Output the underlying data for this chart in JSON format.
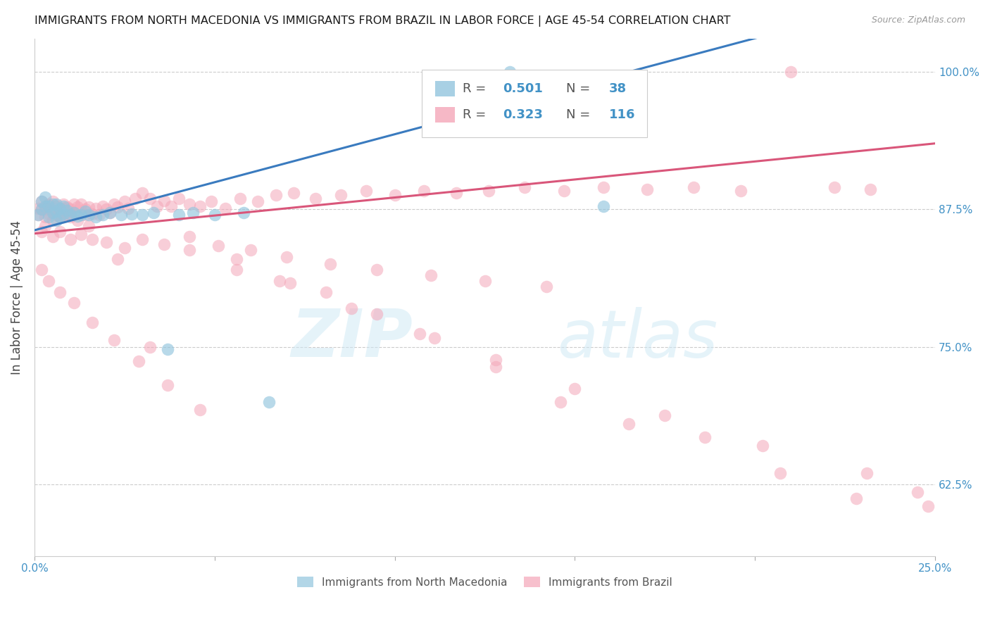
{
  "title": "IMMIGRANTS FROM NORTH MACEDONIA VS IMMIGRANTS FROM BRAZIL IN LABOR FORCE | AGE 45-54 CORRELATION CHART",
  "source": "Source: ZipAtlas.com",
  "ylabel": "In Labor Force | Age 45-54",
  "legend_blue_r": "0.501",
  "legend_blue_n": "38",
  "legend_pink_r": "0.323",
  "legend_pink_n": "116",
  "legend_label_blue": "Immigrants from North Macedonia",
  "legend_label_pink": "Immigrants from Brazil",
  "blue_color": "#92c5de",
  "pink_color": "#f4a6b8",
  "blue_line_color": "#3a7bbf",
  "pink_line_color": "#d9567a",
  "accent_color": "#4292c6",
  "xmin": 0.0,
  "xmax": 0.25,
  "ymin": 0.56,
  "ymax": 1.03,
  "grid_color": "#cccccc",
  "blue_x": [
    0.001,
    0.002,
    0.002,
    0.003,
    0.003,
    0.004,
    0.004,
    0.005,
    0.005,
    0.006,
    0.006,
    0.006,
    0.007,
    0.007,
    0.008,
    0.008,
    0.009,
    0.01,
    0.011,
    0.012,
    0.013,
    0.014,
    0.015,
    0.017,
    0.019,
    0.021,
    0.024,
    0.027,
    0.03,
    0.033,
    0.037,
    0.04,
    0.044,
    0.05,
    0.058,
    0.065,
    0.132,
    0.158
  ],
  "blue_y": [
    0.87,
    0.875,
    0.882,
    0.878,
    0.886,
    0.868,
    0.878,
    0.872,
    0.88,
    0.865,
    0.873,
    0.88,
    0.868,
    0.876,
    0.871,
    0.878,
    0.874,
    0.87,
    0.872,
    0.869,
    0.87,
    0.873,
    0.87,
    0.868,
    0.87,
    0.872,
    0.87,
    0.871,
    0.87,
    0.872,
    0.748,
    0.87,
    0.872,
    0.87,
    0.872,
    0.7,
    1.0,
    0.878
  ],
  "pink_x": [
    0.001,
    0.001,
    0.002,
    0.002,
    0.003,
    0.003,
    0.004,
    0.004,
    0.005,
    0.005,
    0.005,
    0.006,
    0.006,
    0.007,
    0.007,
    0.008,
    0.008,
    0.009,
    0.009,
    0.01,
    0.01,
    0.011,
    0.011,
    0.012,
    0.012,
    0.013,
    0.014,
    0.014,
    0.015,
    0.016,
    0.017,
    0.018,
    0.019,
    0.02,
    0.021,
    0.022,
    0.023,
    0.025,
    0.026,
    0.028,
    0.03,
    0.032,
    0.034,
    0.036,
    0.038,
    0.04,
    0.043,
    0.046,
    0.049,
    0.053,
    0.057,
    0.062,
    0.067,
    0.072,
    0.078,
    0.085,
    0.092,
    0.1,
    0.108,
    0.117,
    0.126,
    0.136,
    0.147,
    0.158,
    0.17,
    0.183,
    0.196,
    0.21,
    0.222,
    0.232,
    0.002,
    0.003,
    0.005,
    0.007,
    0.01,
    0.013,
    0.016,
    0.02,
    0.025,
    0.03,
    0.036,
    0.043,
    0.051,
    0.06,
    0.07,
    0.082,
    0.095,
    0.11,
    0.125,
    0.142,
    0.002,
    0.004,
    0.007,
    0.011,
    0.016,
    0.022,
    0.029,
    0.037,
    0.046,
    0.056,
    0.068,
    0.081,
    0.095,
    0.111,
    0.128,
    0.146,
    0.165,
    0.186,
    0.207,
    0.228,
    0.003,
    0.008,
    0.015,
    0.023,
    0.032,
    0.043,
    0.056,
    0.071,
    0.088,
    0.107,
    0.128,
    0.15,
    0.175,
    0.202,
    0.231,
    0.245,
    0.248
  ],
  "pink_y": [
    0.876,
    0.87,
    0.875,
    0.882,
    0.868,
    0.877,
    0.871,
    0.88,
    0.865,
    0.873,
    0.882,
    0.87,
    0.878,
    0.872,
    0.868,
    0.876,
    0.88,
    0.871,
    0.877,
    0.875,
    0.868,
    0.88,
    0.872,
    0.877,
    0.865,
    0.88,
    0.875,
    0.87,
    0.877,
    0.871,
    0.876,
    0.87,
    0.878,
    0.875,
    0.872,
    0.88,
    0.877,
    0.882,
    0.876,
    0.885,
    0.89,
    0.885,
    0.878,
    0.883,
    0.878,
    0.885,
    0.88,
    0.878,
    0.882,
    0.876,
    0.885,
    0.882,
    0.888,
    0.89,
    0.885,
    0.888,
    0.892,
    0.888,
    0.892,
    0.89,
    0.892,
    0.895,
    0.892,
    0.895,
    0.893,
    0.895,
    0.892,
    1.0,
    0.895,
    0.893,
    0.855,
    0.86,
    0.85,
    0.855,
    0.848,
    0.852,
    0.848,
    0.845,
    0.84,
    0.848,
    0.843,
    0.838,
    0.842,
    0.838,
    0.832,
    0.825,
    0.82,
    0.815,
    0.81,
    0.805,
    0.82,
    0.81,
    0.8,
    0.79,
    0.772,
    0.756,
    0.737,
    0.715,
    0.693,
    0.82,
    0.81,
    0.8,
    0.78,
    0.758,
    0.732,
    0.7,
    0.68,
    0.668,
    0.635,
    0.612,
    0.875,
    0.868,
    0.86,
    0.83,
    0.75,
    0.85,
    0.83,
    0.808,
    0.785,
    0.762,
    0.738,
    0.712,
    0.688,
    0.66,
    0.635,
    0.618,
    0.605
  ]
}
